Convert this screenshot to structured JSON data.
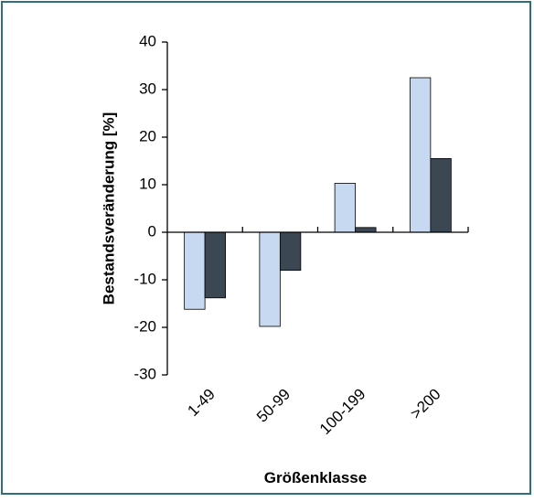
{
  "chart_data": {
    "type": "bar",
    "categories": [
      "1-49",
      "50-99",
      "100-199",
      ">200"
    ],
    "series": [
      {
        "color": "#c6d9f1",
        "values": [
          -16.2,
          -19.8,
          10.3,
          32.5
        ]
      },
      {
        "color": "#3b4753",
        "values": [
          -13.8,
          -8,
          1,
          15.5
        ]
      }
    ],
    "ylim": [
      -30,
      40
    ],
    "yticks": [
      -30,
      -20,
      -10,
      0,
      10,
      20,
      30,
      40
    ],
    "ylabel": "Bestandsveränderung [%]",
    "xlabel": "Größenklasse",
    "grid": false
  }
}
